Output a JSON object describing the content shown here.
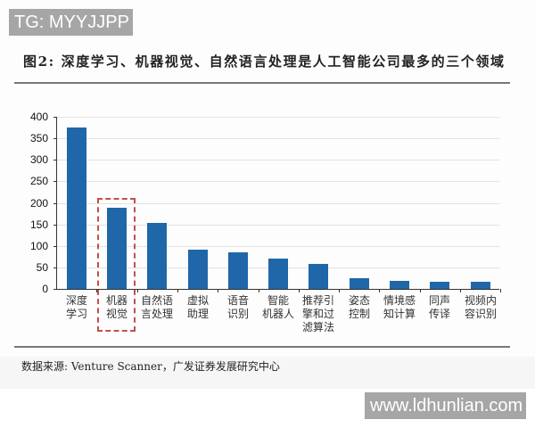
{
  "watermarks": {
    "top": "TG: MYYJJPP",
    "bottom": "www.ldhunlian.com"
  },
  "figure": {
    "title": "图2: 深度学习、机器视觉、自然语言处理是人工智能公司最多的三个领域",
    "source": "数据来源: Venture Scanner，广发证券发展研究中心"
  },
  "colors": {
    "bar": "#1f67a8",
    "highlight": "#c0504d",
    "watermark_bg": "#a6a6a6"
  },
  "chart_data": {
    "type": "bar",
    "title": "图2: 深度学习、机器视觉、自然语言处理是人工智能公司最多的三个领域",
    "xlabel": "",
    "ylabel": "",
    "ylim": [
      0,
      400
    ],
    "yticks": [
      0,
      50,
      100,
      150,
      200,
      250,
      300,
      350,
      400
    ],
    "grid": true,
    "legend": null,
    "categories": [
      "深度学习",
      "机器视觉",
      "自然语言处理",
      "虚拟助理",
      "语音识别",
      "智能机器人",
      "推荐引擎和过滤算法",
      "姿态控制",
      "情境感知计算",
      "同声传译",
      "视频内容识别"
    ],
    "category_label_lines": [
      [
        "深度",
        "学习"
      ],
      [
        "机器",
        "视觉"
      ],
      [
        "自然语",
        "言处理"
      ],
      [
        "虚拟",
        "助理"
      ],
      [
        "语音",
        "识别"
      ],
      [
        "智能",
        "机器人"
      ],
      [
        "推荐引",
        "擎和过",
        "滤算法"
      ],
      [
        "姿态",
        "控制"
      ],
      [
        "情境感",
        "知计算"
      ],
      [
        "同声",
        "传译"
      ],
      [
        "视频内",
        "容识别"
      ]
    ],
    "values": [
      375,
      189,
      153,
      91,
      86,
      70,
      58,
      25,
      19,
      17,
      16
    ],
    "annotations": [
      "Dashed red box highlighting 机器视觉"
    ],
    "source": "数据来源: Venture Scanner，广发证券发展研究中心"
  }
}
